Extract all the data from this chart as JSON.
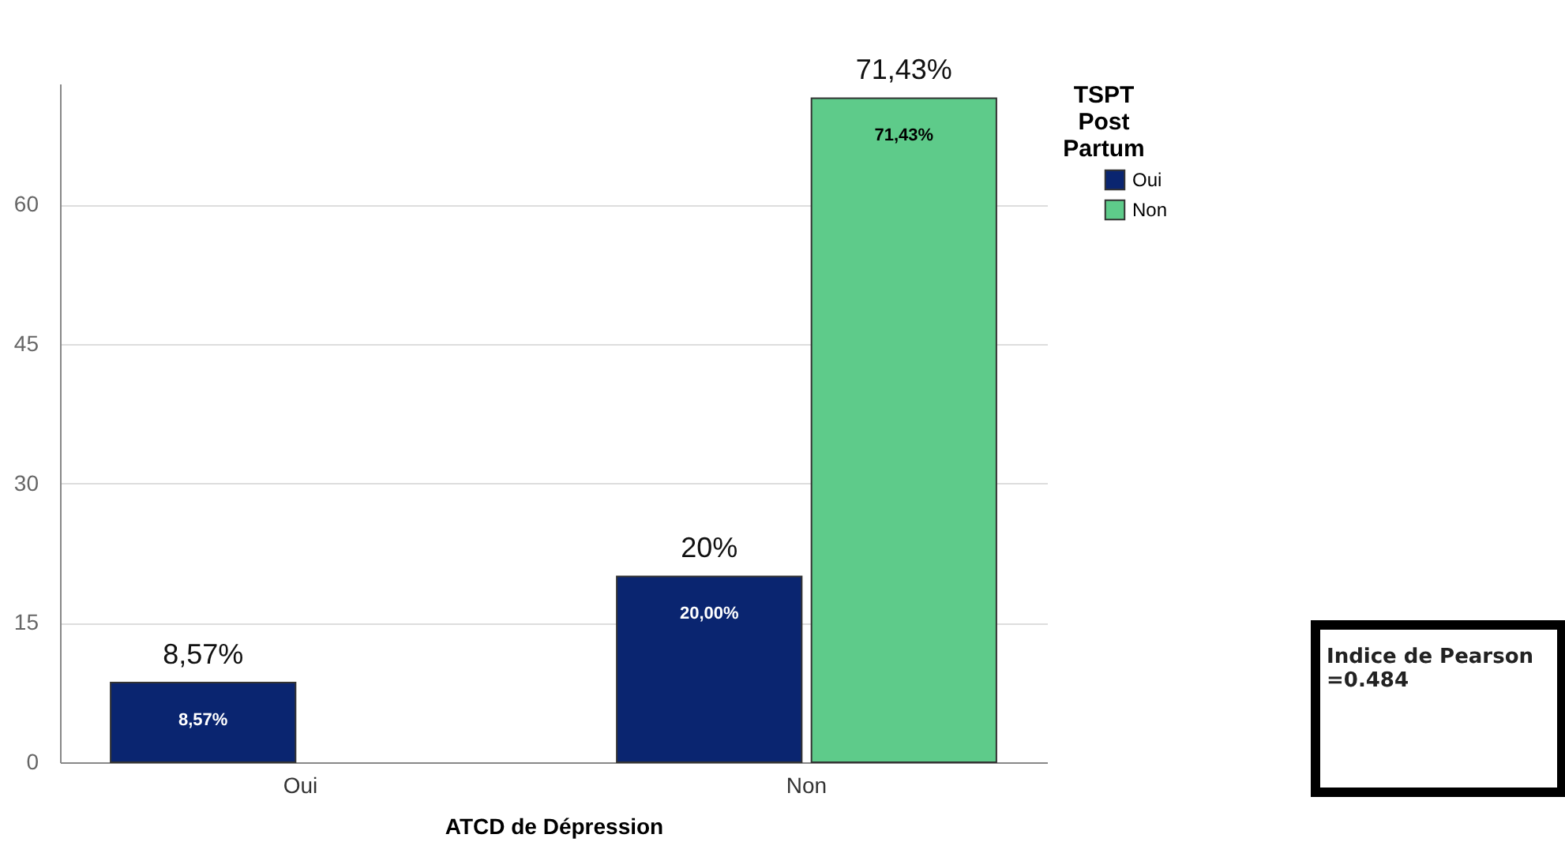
{
  "chart_data": {
    "type": "bar",
    "xlabel": "ATCD de Dépression",
    "legend_title": "TSPT Post Partum",
    "categories": [
      "Oui",
      "Non"
    ],
    "series": [
      {
        "name": "Oui",
        "color": "#0a2570",
        "values": [
          8.57,
          20
        ],
        "value_labels": [
          "8,57%",
          "20,00%"
        ]
      },
      {
        "name": "Non",
        "color": "#5ecb8a",
        "values": [
          null,
          71.43
        ],
        "value_labels": [
          null,
          "71,43%"
        ]
      }
    ],
    "ylim": [
      0,
      73
    ],
    "yticks": [
      0,
      15,
      30,
      45,
      60
    ],
    "grid": "y",
    "legend": "top right",
    "annotations": [
      {
        "text": "8,57%",
        "x": "Oui",
        "y": 8.57
      },
      {
        "text": "20%",
        "x": "Non",
        "y": 20
      },
      {
        "text": "71,43%",
        "x": "Non",
        "y": 71.43
      },
      "Indice de Pearson =0.484"
    ]
  }
}
